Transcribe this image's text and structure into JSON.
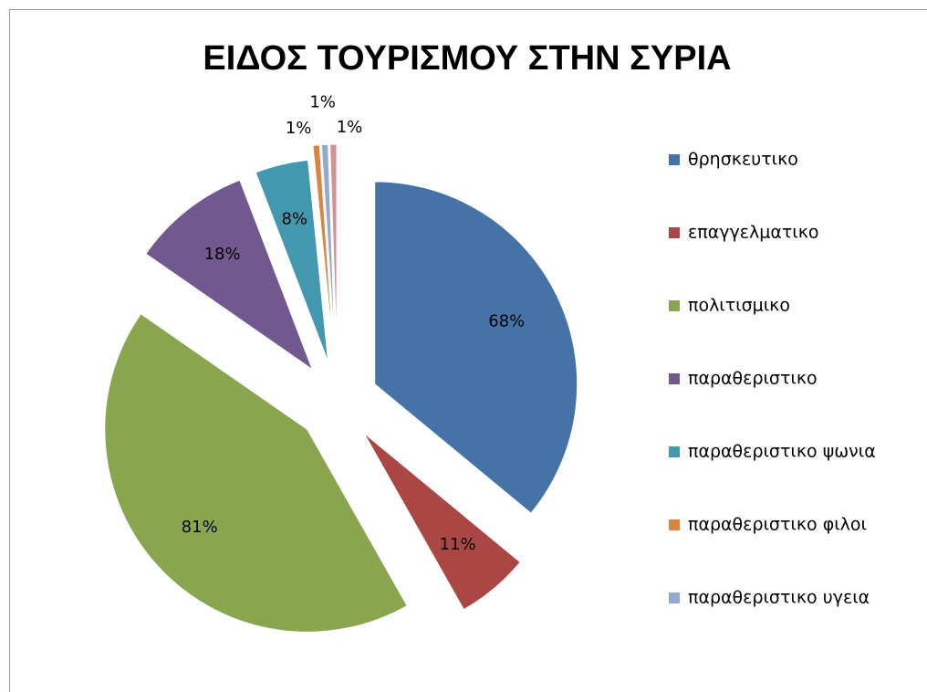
{
  "chart_data": {
    "type": "pie",
    "title": "ΕΙΔΟΣ ΤΟΥΡΙΣΜΟΥ ΣΤΗΝ ΣΥΡΙΑ",
    "categories": [
      "θρησκευτικο",
      "επαγγελματικο",
      "πολιτισμικο",
      "παραθεριστικο",
      "παραθεριστικο ψωνια",
      "παραθεριστικο φιλοι",
      "παραθεριστικο υγεια",
      null
    ],
    "values": [
      68,
      11,
      81,
      18,
      8,
      1,
      1,
      1
    ],
    "value_labels": [
      "68%",
      "11%",
      "81%",
      "18%",
      "8%",
      "1%",
      "1%",
      "1%"
    ],
    "colors": [
      "#4572a7",
      "#aa4643",
      "#89a54e",
      "#71588f",
      "#4198af",
      "#db843d",
      "#93a9cf",
      "#d19392"
    ],
    "legend": "right"
  }
}
